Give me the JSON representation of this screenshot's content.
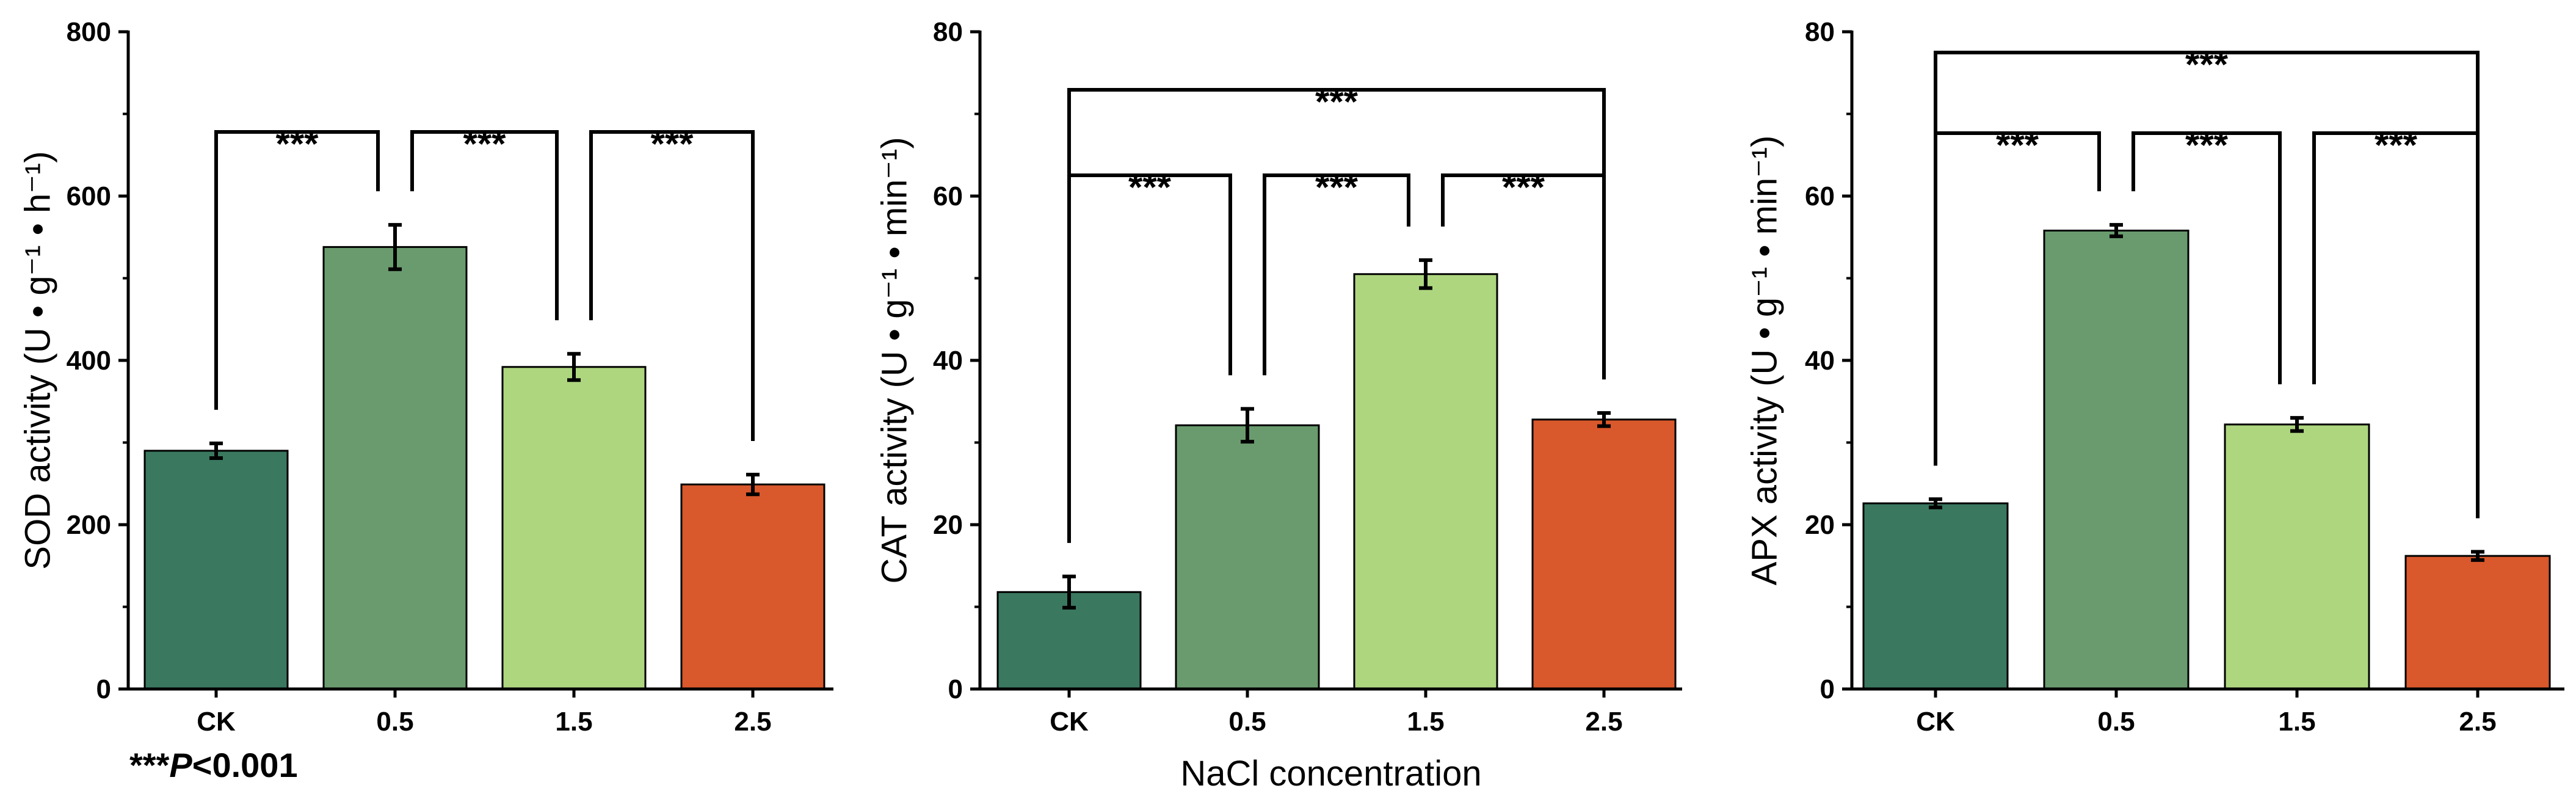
{
  "chart_data": [
    {
      "type": "bar",
      "title": "",
      "categories": [
        "CK",
        "0.5",
        "1.5",
        "2.5"
      ],
      "values": [
        290,
        538,
        392,
        249
      ],
      "errors": [
        9,
        27,
        16,
        12
      ],
      "xlabel": "",
      "ylabel": "SOD activity (U • g⁻¹ • h⁻¹)",
      "ylim": [
        0,
        800
      ],
      "yticks": [
        0,
        200,
        400,
        600,
        800
      ],
      "colors": [
        "#3a7860",
        "#6a9b6e",
        "#aed67f",
        "#d9582c"
      ],
      "significance": [
        {
          "from": 0,
          "to": 1,
          "label": "***",
          "level": 1
        },
        {
          "from": 1,
          "to": 2,
          "label": "***",
          "level": 1
        },
        {
          "from": 2,
          "to": 3,
          "label": "***",
          "level": 1
        }
      ],
      "footnote": "***P<0.001"
    },
    {
      "type": "bar",
      "title": "",
      "categories": [
        "CK",
        "0.5",
        "1.5",
        "2.5"
      ],
      "values": [
        11.8,
        32.1,
        50.5,
        32.8
      ],
      "errors": [
        1.9,
        2.0,
        1.7,
        0.8
      ],
      "xlabel": "NaCl concentration",
      "ylabel": "CAT activity (U • g⁻¹ • min⁻¹)",
      "ylim": [
        0,
        80
      ],
      "yticks": [
        0,
        20,
        40,
        60,
        80
      ],
      "colors": [
        "#3a7860",
        "#6a9b6e",
        "#aed67f",
        "#d9582c"
      ],
      "significance": [
        {
          "from": 0,
          "to": 1,
          "label": "***",
          "level": 1
        },
        {
          "from": 1,
          "to": 2,
          "label": "***",
          "level": 1
        },
        {
          "from": 2,
          "to": 3,
          "label": "***",
          "level": 1
        },
        {
          "from": 0,
          "to": 3,
          "label": "***",
          "level": 2
        }
      ]
    },
    {
      "type": "bar",
      "title": "",
      "categories": [
        "CK",
        "0.5",
        "1.5",
        "2.5"
      ],
      "values": [
        22.6,
        55.8,
        32.2,
        16.2
      ],
      "errors": [
        0.5,
        0.7,
        0.8,
        0.5
      ],
      "xlabel": "",
      "ylabel": "APX activity (U • g⁻¹ • min⁻¹)",
      "ylim": [
        0,
        80
      ],
      "yticks": [
        0,
        20,
        40,
        60,
        80
      ],
      "colors": [
        "#3a7860",
        "#6a9b6e",
        "#aed67f",
        "#d9582c"
      ],
      "significance": [
        {
          "from": 0,
          "to": 1,
          "label": "***",
          "level": 1
        },
        {
          "from": 1,
          "to": 2,
          "label": "***",
          "level": 1
        },
        {
          "from": 2,
          "to": 3,
          "label": "***",
          "level": 1
        },
        {
          "from": 0,
          "to": 3,
          "label": "***",
          "level": 2
        }
      ]
    }
  ]
}
